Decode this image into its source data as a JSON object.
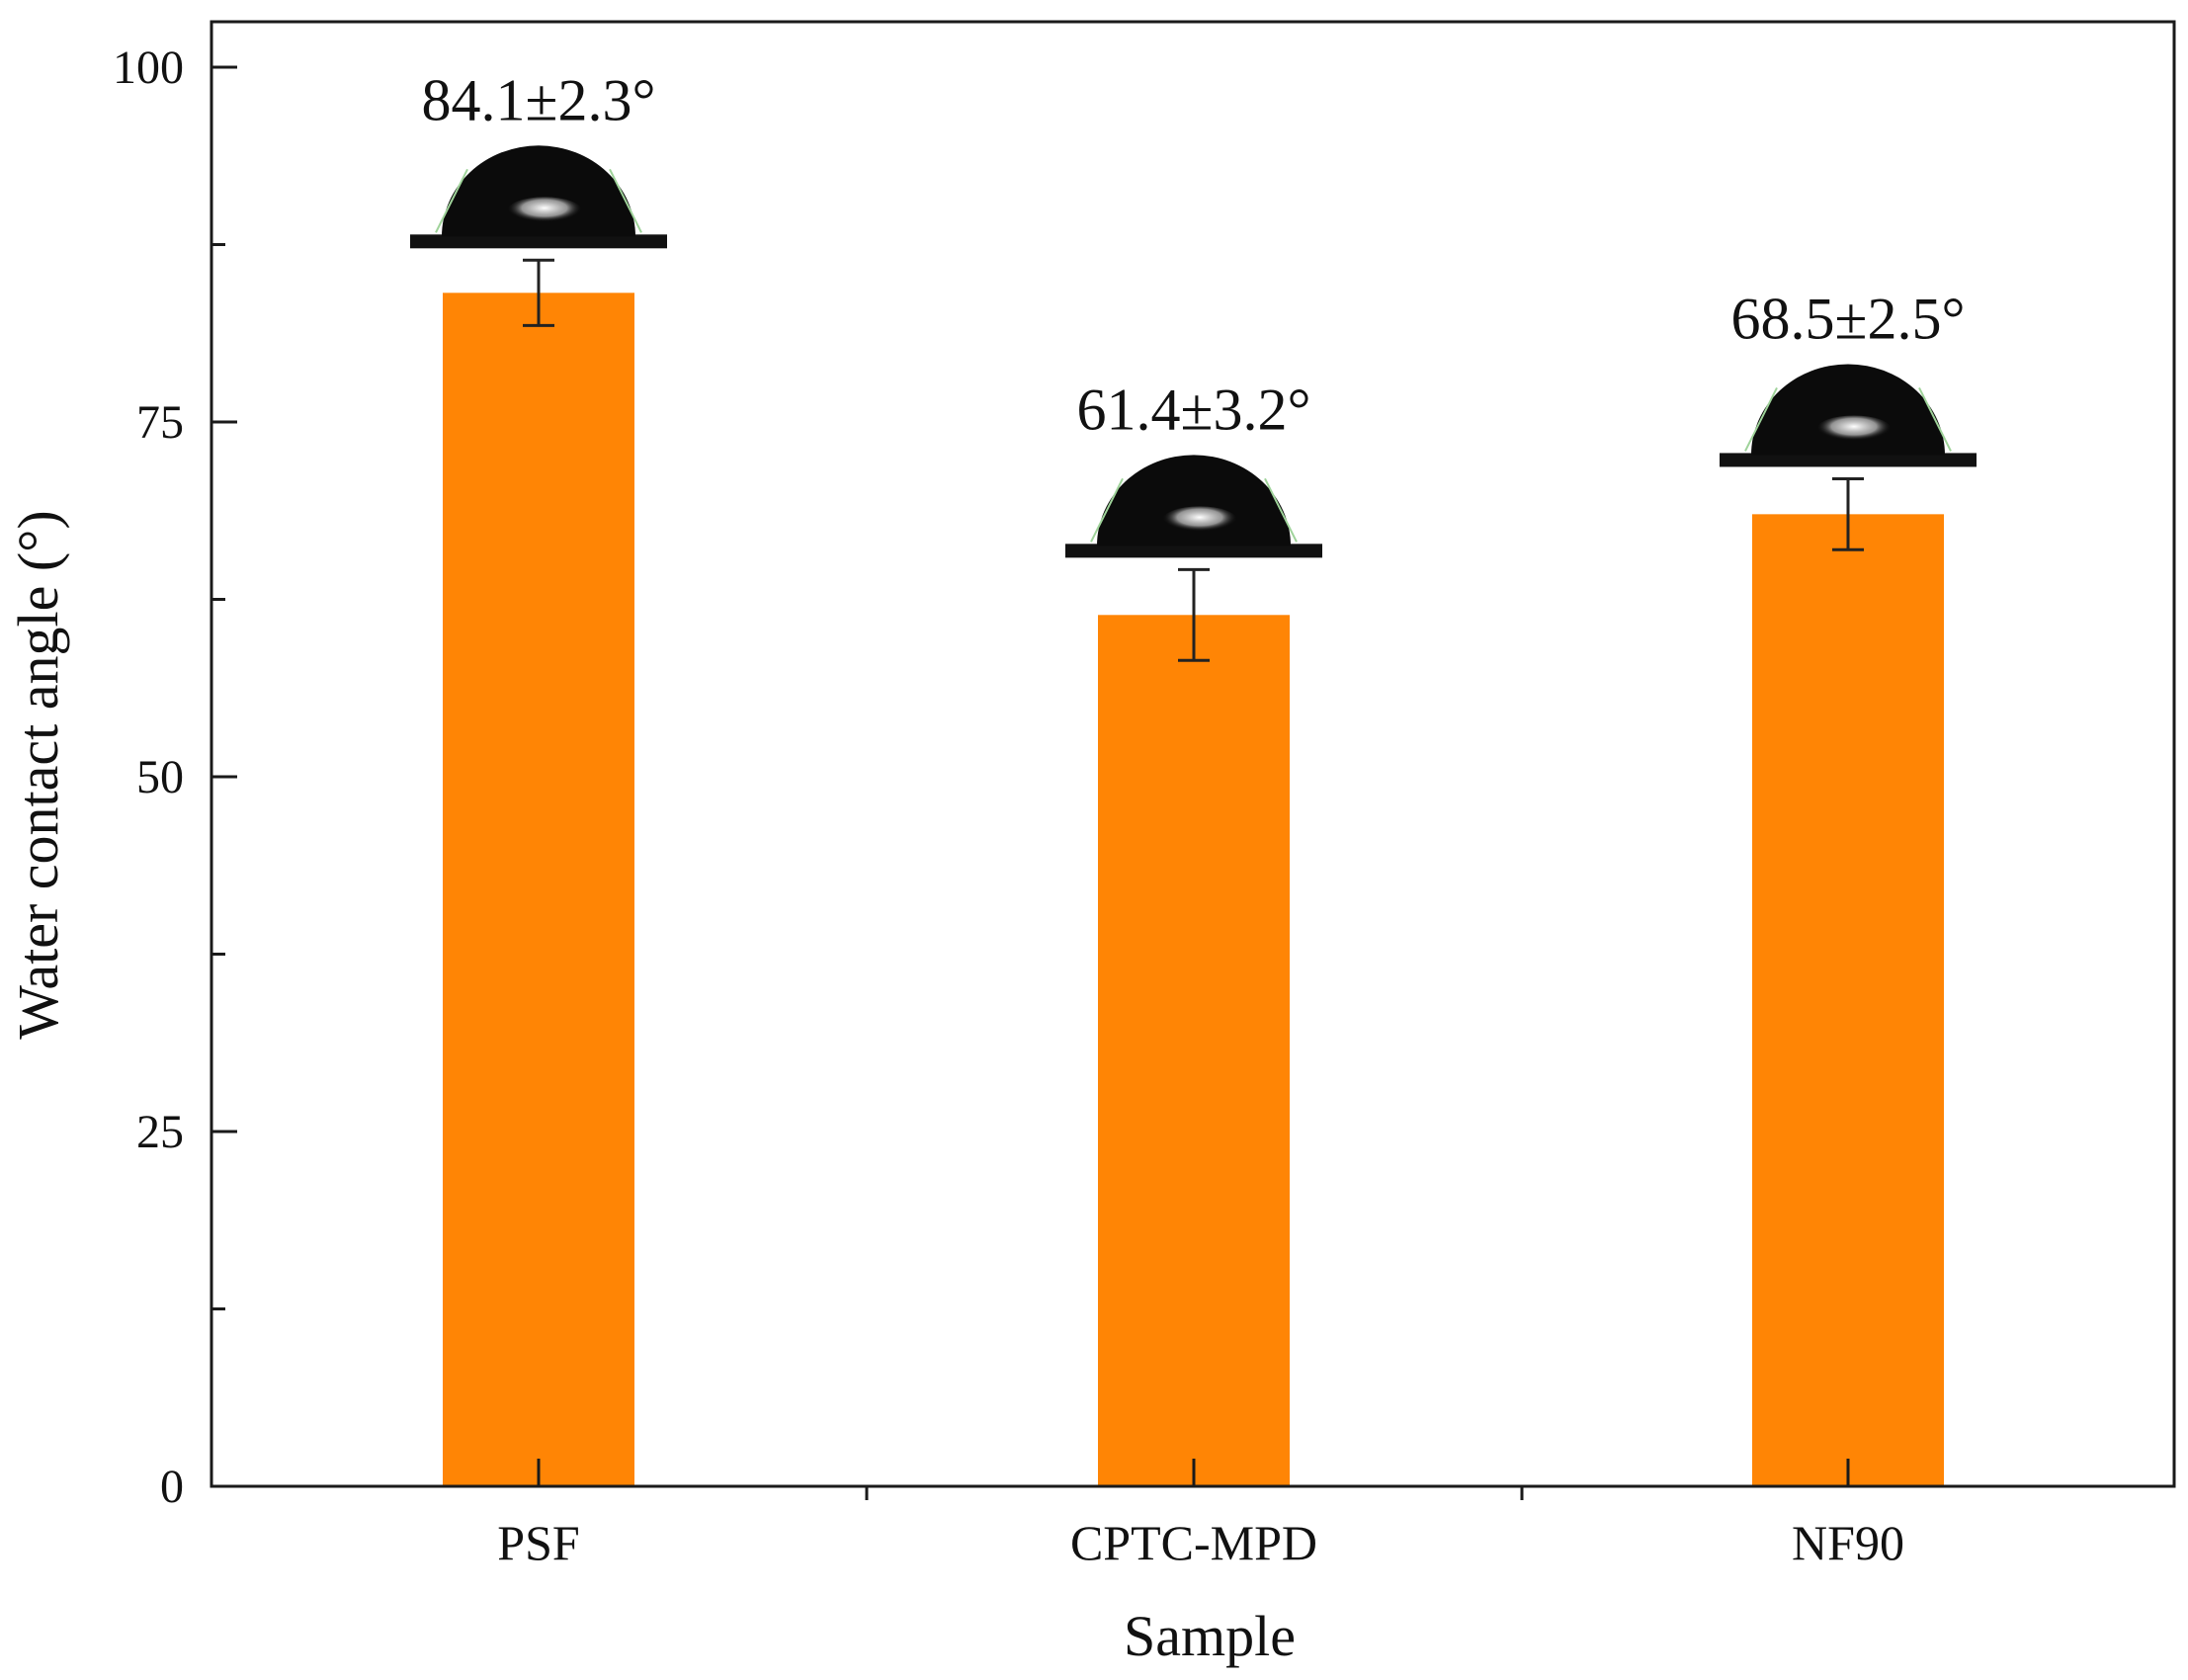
{
  "chart_data": {
    "type": "bar",
    "title": "",
    "xlabel": "Sample",
    "ylabel": "Water contact angle (°)",
    "categories": [
      "PSF",
      "CPTC-MPD",
      "NF90"
    ],
    "values": [
      84.1,
      61.4,
      68.5
    ],
    "errors": [
      2.3,
      3.2,
      2.5
    ],
    "annotations": [
      "84.1±2.3°",
      "61.4±3.2°",
      "68.5±2.5°"
    ],
    "ylim": [
      0,
      100
    ],
    "yticks": [
      0,
      25,
      50,
      75,
      100
    ],
    "yticks_minor": [
      12.5,
      37.5,
      62.5,
      87.5
    ],
    "grid": false,
    "legend": "none"
  },
  "colors": {
    "bar": "#FF8505",
    "axis": "#1a1a1a",
    "droplet": "#0b0b0b",
    "droplet_highlight": "#e8e8e8",
    "contact_line": "#9fd39a"
  },
  "icons": [
    "water-droplet-icon"
  ]
}
